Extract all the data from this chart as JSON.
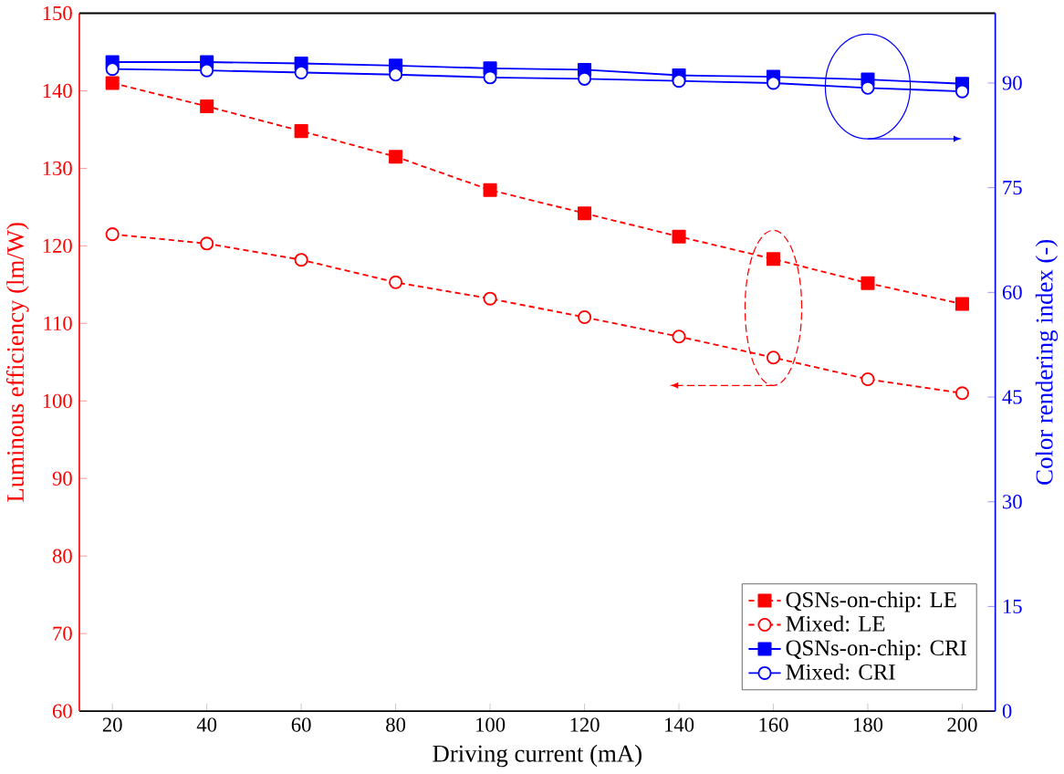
{
  "chart_data": {
    "type": "line",
    "xlabel": "Driving current (mA)",
    "ylabel": "Luminous efficiency (lm/W)",
    "y2label": "Color rendering index (-)",
    "x": [
      20,
      40,
      60,
      80,
      100,
      120,
      140,
      160,
      180,
      200
    ],
    "series": [
      {
        "name": "QSNs-on-chip: LE",
        "color": "#ff0000",
        "marker": "square",
        "line_style": "dashed",
        "values": [
          141,
          138,
          134.8,
          131.5,
          127.2,
          124.2,
          121.2,
          118.3,
          115.2,
          112.5
        ]
      },
      {
        "name": "Mixed: LE",
        "color": "#ff0000",
        "marker": "circle",
        "line_style": "dashed",
        "values": [
          121.5,
          120.3,
          118.2,
          115.3,
          113.2,
          110.8,
          108.3,
          105.6,
          102.8,
          101
        ]
      },
      {
        "name": "QSNs-on-chip: CRI",
        "color": "#0000ff",
        "marker": "square",
        "line_style": "solid",
        "axis": "y2",
        "values": [
          93.0,
          93.0,
          92.8,
          92.5,
          92.1,
          91.9,
          91.1,
          90.9,
          90.5,
          89.9
        ]
      },
      {
        "name": "Mixed: CRI",
        "color": "#0000ff",
        "marker": "circle",
        "line_style": "solid",
        "axis": "y2",
        "values": [
          92.0,
          91.8,
          91.5,
          91.2,
          90.8,
          90.6,
          90.3,
          90.0,
          89.3,
          88.8
        ]
      }
    ],
    "xlim": [
      13,
      207
    ],
    "xticks": [
      20,
      40,
      60,
      80,
      100,
      120,
      140,
      160,
      180,
      200
    ],
    "ylim": [
      60,
      150
    ],
    "yticks": [
      60,
      70,
      80,
      90,
      100,
      110,
      120,
      130,
      140,
      150
    ],
    "y2lim": [
      0,
      100
    ],
    "y2ticks": [
      0,
      15,
      30,
      45,
      60,
      75,
      90
    ],
    "legend": "bottom right",
    "grid": false
  }
}
